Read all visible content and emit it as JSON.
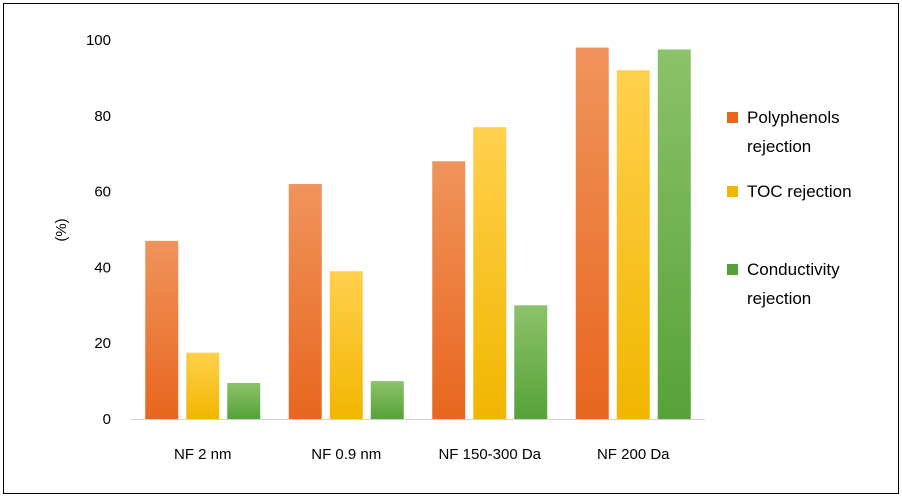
{
  "chart_data": {
    "type": "bar",
    "categories": [
      "NF 2 nm",
      "NF 0.9 nm",
      "NF 150-300 Da",
      "NF 200 Da"
    ],
    "series": [
      {
        "name": "Polyphenols rejection",
        "name_lines": [
          "Polyphenols",
          "rejection"
        ],
        "values": [
          47,
          62,
          68,
          98
        ],
        "color_top": "#f0945c",
        "color_bottom": "#e8661e"
      },
      {
        "name": "TOC rejection",
        "name_lines": [
          "TOC rejection"
        ],
        "values": [
          17.5,
          39,
          77,
          92
        ],
        "color_top": "#ffd04d",
        "color_bottom": "#f2b600"
      },
      {
        "name": "Conductivity rejection",
        "name_lines": [
          "Conductivity",
          "rejection"
        ],
        "values": [
          9.5,
          10,
          30,
          97.5
        ],
        "color_top": "#8cc26a",
        "color_bottom": "#56a238"
      }
    ],
    "title": "",
    "xlabel": "",
    "ylabel": "(%)",
    "ylim": [
      0,
      100
    ],
    "yticks": [
      0,
      20,
      40,
      60,
      80,
      100
    ],
    "grid": false,
    "legend_position": "right"
  }
}
